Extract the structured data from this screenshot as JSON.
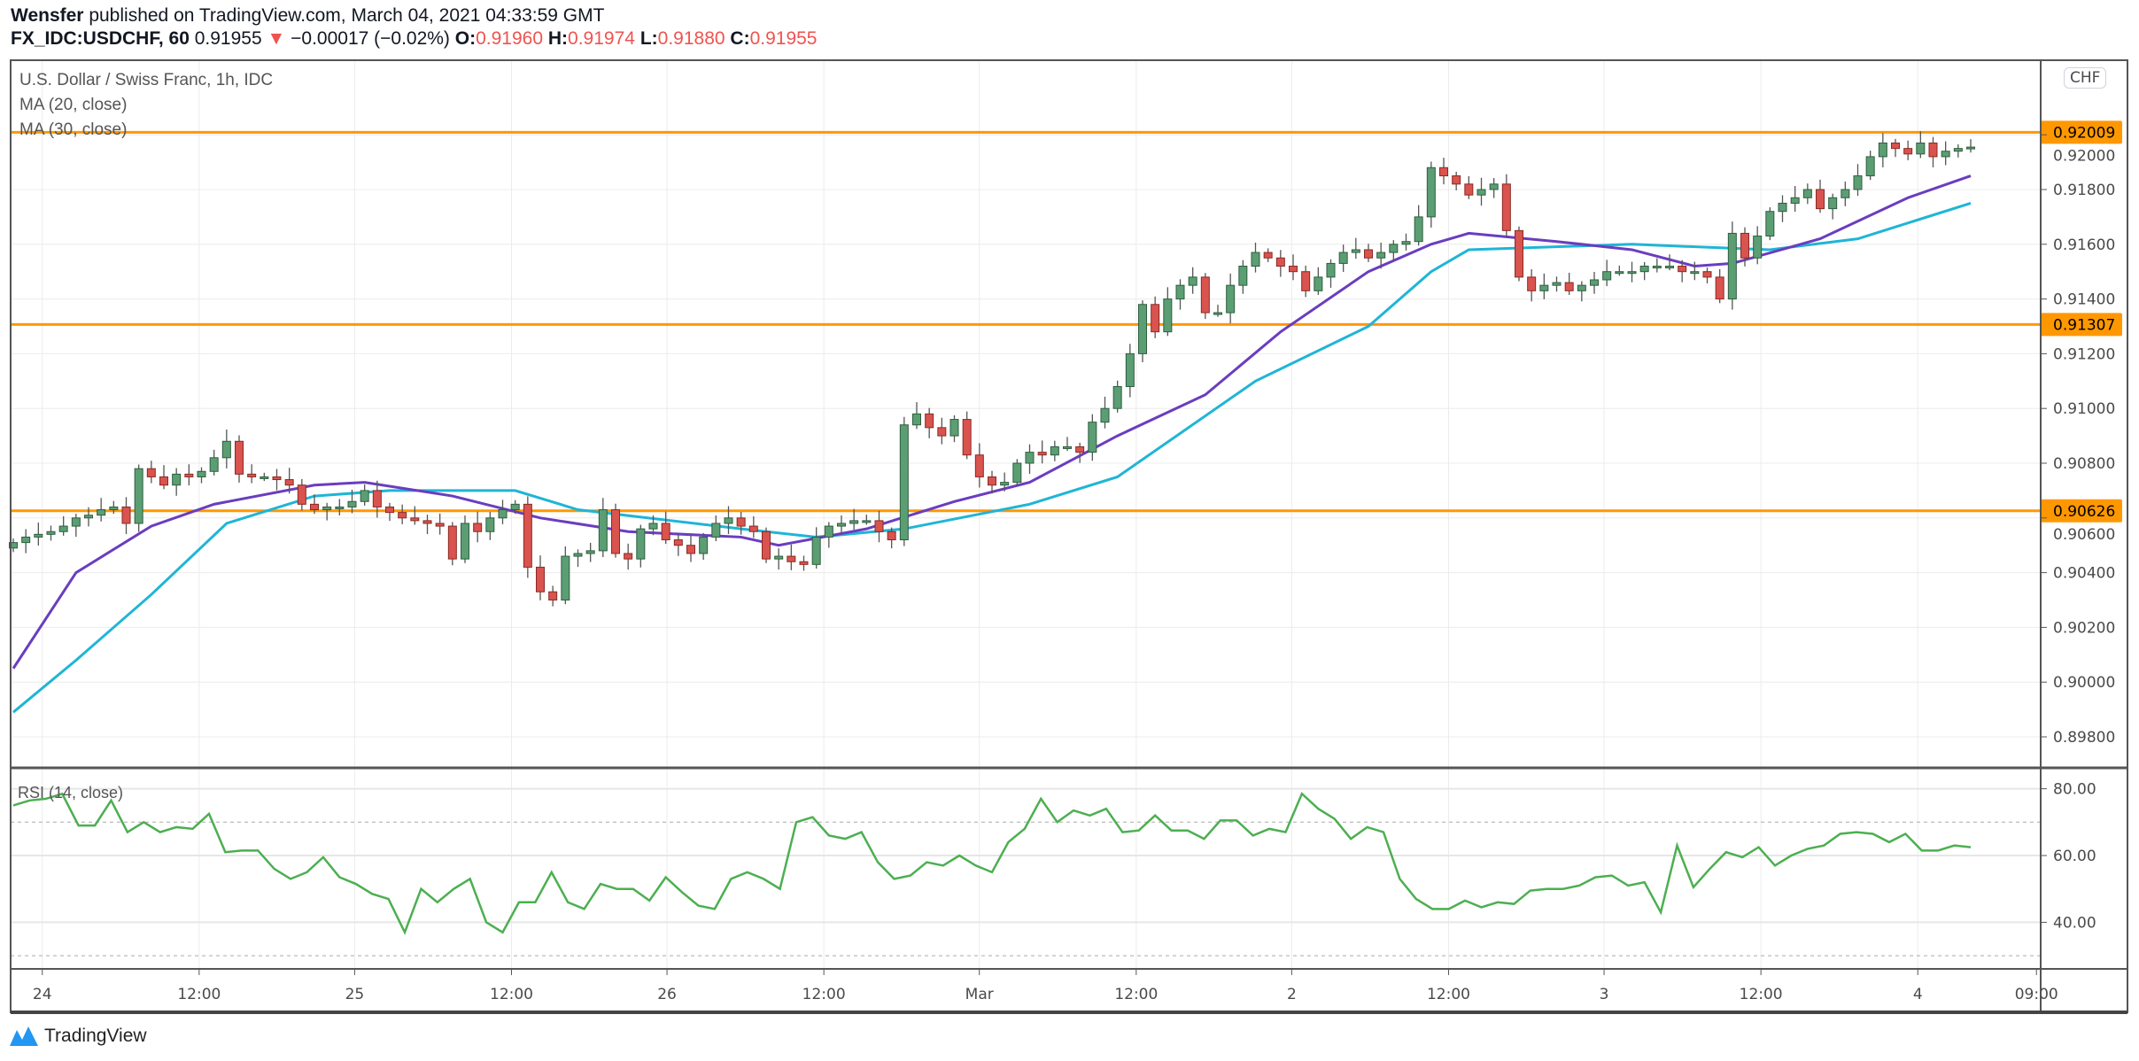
{
  "header": {
    "author": "Wensfer",
    "published": "published on TradingView.com, March 04, 2021 04:33:59 GMT",
    "symbol": "FX_IDC:USDCHF, 60",
    "last": "0.91955",
    "change": "−0.00017 (−0.02%)",
    "o_label": "O:",
    "o": "0.91960",
    "h_label": "H:",
    "h": "0.91974",
    "l_label": "L:",
    "l": "0.91880",
    "c_label": "C:",
    "c": "0.91955"
  },
  "legend": {
    "title": "U.S. Dollar / Swiss Franc, 1h, IDC",
    "ma20": "MA (20, close)",
    "ma30": "MA (30, close)",
    "rsi": "RSI (14, close)"
  },
  "currency_badge": "CHF",
  "brand": "TradingView",
  "colors": {
    "up": "#5c9e74",
    "down": "#d9534f",
    "ma20": "#6a3dbf",
    "ma30": "#1fb5d6",
    "level": "#ff9800",
    "rsi": "#4caf50"
  },
  "chart_data": [
    {
      "type": "candlestick",
      "title": "U.S. Dollar / Swiss Franc, 1h, IDC",
      "ylim": [
        0.897,
        0.9215
      ],
      "y_ticks": [
        "0.92000",
        "0.91800",
        "0.91600",
        "0.91400",
        "0.91200",
        "0.91000",
        "0.90800",
        "0.90600",
        "0.90400",
        "0.90200",
        "0.90000",
        "0.89800"
      ],
      "x_ticks": [
        "24",
        "12:00",
        "25",
        "12:00",
        "26",
        "12:00",
        "Mar",
        "12:00",
        "2",
        "12:00",
        "3",
        "12:00",
        "4",
        "09:00"
      ],
      "first_open": 0.9049,
      "closes": [
        0.9051,
        0.9053,
        0.9054,
        0.9055,
        0.9057,
        0.906,
        0.9061,
        0.9063,
        0.9064,
        0.9058,
        0.9078,
        0.9075,
        0.9072,
        0.9076,
        0.9075,
        0.9077,
        0.9082,
        0.9088,
        0.9076,
        0.9075,
        0.9075,
        0.9074,
        0.9072,
        0.9065,
        0.9063,
        0.9064,
        0.9064,
        0.9066,
        0.907,
        0.9064,
        0.9062,
        0.906,
        0.9059,
        0.9058,
        0.9057,
        0.9045,
        0.9058,
        0.9055,
        0.906,
        0.9063,
        0.9065,
        0.9042,
        0.9033,
        0.903,
        0.9046,
        0.9047,
        0.9048,
        0.9063,
        0.9047,
        0.9045,
        0.9056,
        0.9058,
        0.9052,
        0.905,
        0.9047,
        0.9053,
        0.9058,
        0.906,
        0.9057,
        0.9055,
        0.9045,
        0.9046,
        0.9044,
        0.9043,
        0.9053,
        0.9057,
        0.9058,
        0.9059,
        0.9059,
        0.9055,
        0.9052,
        0.9094,
        0.9098,
        0.9093,
        0.909,
        0.9096,
        0.9083,
        0.9075,
        0.9072,
        0.9073,
        0.908,
        0.9084,
        0.9083,
        0.9086,
        0.9086,
        0.9084,
        0.9095,
        0.91,
        0.9108,
        0.912,
        0.9138,
        0.9128,
        0.914,
        0.9145,
        0.9148,
        0.9135,
        0.9135,
        0.9145,
        0.9152,
        0.9157,
        0.9155,
        0.9152,
        0.915,
        0.9143,
        0.9148,
        0.9153,
        0.9157,
        0.9158,
        0.9155,
        0.9157,
        0.916,
        0.9161,
        0.917,
        0.9188,
        0.9185,
        0.9182,
        0.9178,
        0.918,
        0.9182,
        0.9165,
        0.9148,
        0.9143,
        0.9145,
        0.9146,
        0.9143,
        0.9145,
        0.9147,
        0.915,
        0.915,
        0.915,
        0.9152,
        0.9152,
        0.9152,
        0.915,
        0.915,
        0.9148,
        0.914,
        0.9164,
        0.9155,
        0.9163,
        0.9172,
        0.9175,
        0.9177,
        0.918,
        0.9173,
        0.9177,
        0.918,
        0.9185,
        0.9192,
        0.9197,
        0.9195,
        0.9193,
        0.9197,
        0.9192,
        0.9194,
        0.9195,
        0.91955
      ],
      "ma20": [
        [
          0,
          0.9005
        ],
        [
          5,
          0.904
        ],
        [
          11,
          0.9057
        ],
        [
          16,
          0.9065
        ],
        [
          24,
          0.9072
        ],
        [
          28,
          0.9073
        ],
        [
          35,
          0.9068
        ],
        [
          42,
          0.906
        ],
        [
          49,
          0.9055
        ],
        [
          58,
          0.9053
        ],
        [
          61,
          0.905
        ],
        [
          68,
          0.9056
        ],
        [
          75,
          0.9066
        ],
        [
          81,
          0.9073
        ],
        [
          88,
          0.909
        ],
        [
          95,
          0.9105
        ],
        [
          101,
          0.9128
        ],
        [
          108,
          0.915
        ],
        [
          113,
          0.916
        ],
        [
          116,
          0.9164
        ],
        [
          123,
          0.9161
        ],
        [
          129,
          0.9158
        ],
        [
          134,
          0.9152
        ],
        [
          137,
          0.9153
        ],
        [
          144,
          0.9162
        ],
        [
          151,
          0.9177
        ],
        [
          156,
          0.9185
        ]
      ],
      "ma30": [
        [
          0,
          0.8989
        ],
        [
          5,
          0.9008
        ],
        [
          11,
          0.9032
        ],
        [
          17,
          0.9058
        ],
        [
          24,
          0.9068
        ],
        [
          30,
          0.907
        ],
        [
          40,
          0.907
        ],
        [
          45,
          0.9063
        ],
        [
          58,
          0.9056
        ],
        [
          64,
          0.9053
        ],
        [
          71,
          0.9056
        ],
        [
          81,
          0.9065
        ],
        [
          88,
          0.9075
        ],
        [
          99,
          0.911
        ],
        [
          108,
          0.913
        ],
        [
          113,
          0.915
        ],
        [
          116,
          0.9158
        ],
        [
          129,
          0.916
        ],
        [
          140,
          0.9158
        ],
        [
          147,
          0.9162
        ],
        [
          156,
          0.9175
        ]
      ],
      "levels": [
        {
          "value": 0.92009,
          "label": "0.92009"
        },
        {
          "value": 0.91307,
          "label": "0.91307"
        },
        {
          "value": 0.90626,
          "label": "0.90626"
        }
      ]
    },
    {
      "type": "line",
      "title": "RSI (14, close)",
      "ylim": [
        25,
        85
      ],
      "y_ticks": [
        "80.00",
        "60.00",
        "40.00"
      ],
      "bands": [
        70,
        30
      ],
      "values": [
        75,
        76.5,
        77,
        78.5,
        69,
        69,
        76.5,
        67,
        70,
        67,
        68.5,
        68,
        72.5,
        61,
        61.5,
        61.5,
        56,
        53,
        55,
        59.5,
        53.5,
        51.5,
        48.5,
        47,
        37,
        50,
        46,
        50,
        53,
        40,
        37,
        46,
        46,
        55,
        46,
        44,
        51.5,
        50,
        50,
        46.5,
        53.5,
        49,
        45,
        44,
        53,
        55,
        53,
        50,
        70,
        71.5,
        66,
        65,
        67,
        58,
        53,
        54,
        58,
        57,
        60,
        57,
        55,
        64,
        68,
        77,
        70,
        73.5,
        72,
        74,
        67,
        67.5,
        72,
        67.5,
        67.5,
        65,
        70.5,
        70.5,
        66,
        68,
        67,
        78.5,
        74,
        71,
        65,
        68.5,
        67,
        53,
        47,
        44,
        44,
        46.5,
        44.5,
        46,
        45.5,
        49.5,
        50,
        50,
        51,
        53.5,
        54,
        51,
        52,
        43,
        63,
        50.5,
        56,
        61,
        59.5,
        62.5,
        57,
        60,
        62,
        63,
        66.5,
        67,
        66.5,
        64,
        66.5,
        61.5,
        61.5,
        63,
        62.5
      ]
    }
  ]
}
